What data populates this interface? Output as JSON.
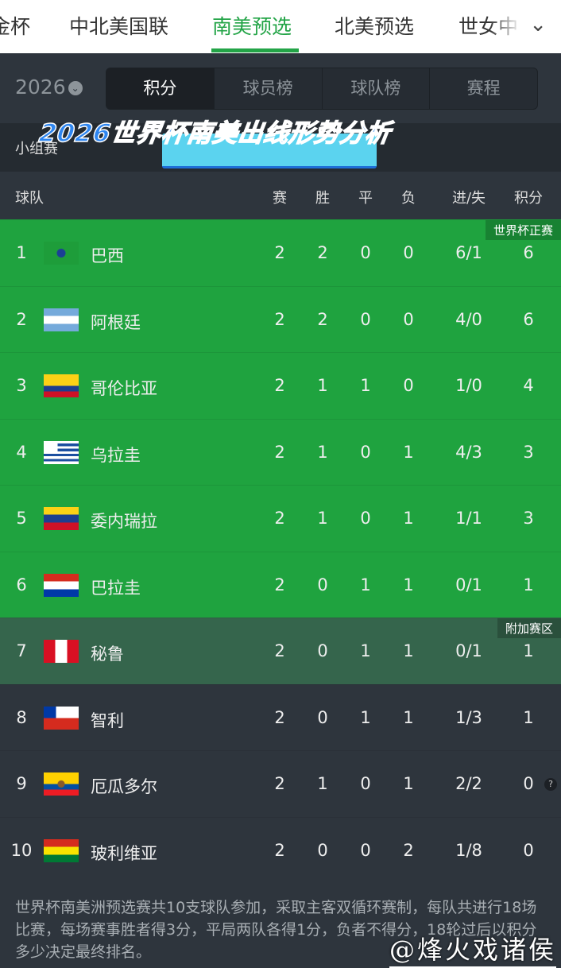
{
  "nav": {
    "items": [
      "金杯",
      "中北美国联",
      "南美预选",
      "北美预选",
      "世女中"
    ],
    "active": 2
  },
  "year": "2026",
  "tabs": [
    "积分",
    "球员榜",
    "球队榜",
    "赛程"
  ],
  "group_label": "小组赛",
  "banner": "2026世界杯南美出线形势分析",
  "headers": {
    "team": "球队",
    "played": "赛",
    "win": "胜",
    "draw": "平",
    "loss": "负",
    "goals": "进/失",
    "points": "积分"
  },
  "zones": {
    "direct": "世界杯正赛",
    "playoff": "附加赛区"
  },
  "colors": {
    "accent": "#23a447",
    "direct": "#1fa33f",
    "playoff": "#35654c",
    "other": "#2e353d"
  },
  "rows": [
    {
      "rank": "1",
      "team": "巴西",
      "flag": "brazil-flag",
      "p": "2",
      "w": "2",
      "d": "0",
      "l": "0",
      "g": "6/1",
      "pts": "6"
    },
    {
      "rank": "2",
      "team": "阿根廷",
      "flag": "argentina-flag",
      "p": "2",
      "w": "2",
      "d": "0",
      "l": "0",
      "g": "4/0",
      "pts": "6"
    },
    {
      "rank": "3",
      "team": "哥伦比亚",
      "flag": "colombia-flag",
      "p": "2",
      "w": "1",
      "d": "1",
      "l": "0",
      "g": "1/0",
      "pts": "4"
    },
    {
      "rank": "4",
      "team": "乌拉圭",
      "flag": "uruguay-flag",
      "p": "2",
      "w": "1",
      "d": "0",
      "l": "1",
      "g": "4/3",
      "pts": "3"
    },
    {
      "rank": "5",
      "team": "委内瑞拉",
      "flag": "venezuela-flag",
      "p": "2",
      "w": "1",
      "d": "0",
      "l": "1",
      "g": "1/1",
      "pts": "3"
    },
    {
      "rank": "6",
      "team": "巴拉圭",
      "flag": "paraguay-flag",
      "p": "2",
      "w": "0",
      "d": "1",
      "l": "1",
      "g": "0/1",
      "pts": "1"
    },
    {
      "rank": "7",
      "team": "秘鲁",
      "flag": "peru-flag",
      "p": "2",
      "w": "0",
      "d": "1",
      "l": "1",
      "g": "0/1",
      "pts": "1"
    },
    {
      "rank": "8",
      "team": "智利",
      "flag": "chile-flag",
      "p": "2",
      "w": "0",
      "d": "1",
      "l": "1",
      "g": "1/3",
      "pts": "1"
    },
    {
      "rank": "9",
      "team": "厄瓜多尔",
      "flag": "ecuador-flag",
      "p": "2",
      "w": "1",
      "d": "0",
      "l": "1",
      "g": "2/2",
      "pts": "0"
    },
    {
      "rank": "10",
      "team": "玻利维亚",
      "flag": "bolivia-flag",
      "p": "2",
      "w": "0",
      "d": "0",
      "l": "2",
      "g": "1/8",
      "pts": "0"
    }
  ],
  "note_icon": "?",
  "footer": "世界杯南美洲预选赛共10支球队参加，采取主客双循环赛制，每队共进行18场比赛，每场赛事胜者得3分，平局两队各得1分，负者不得分，18轮过后以积分多少决定最终排名。",
  "watermark": "@烽火戏诸侯"
}
